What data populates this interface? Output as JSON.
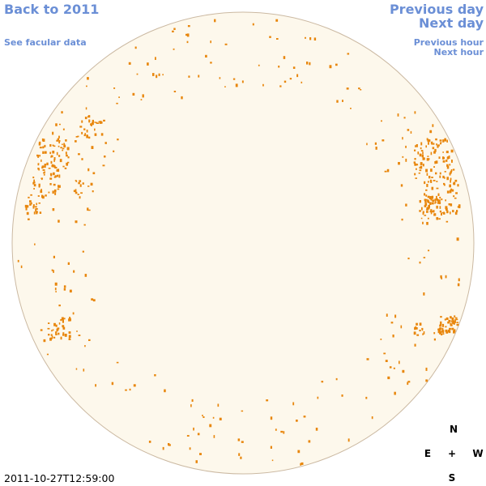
{
  "nav": {
    "back_year": "Back to 2011",
    "facular": "See facular data",
    "prev_day": "Previous day",
    "next_day": "Next day",
    "prev_hour": "Previous hour",
    "next_hour": "Next hour"
  },
  "compass": {
    "north": "N",
    "east": "E",
    "center": "+",
    "west": "W",
    "south": "S"
  },
  "timestamp": "2011-10-27T12:59:00"
}
